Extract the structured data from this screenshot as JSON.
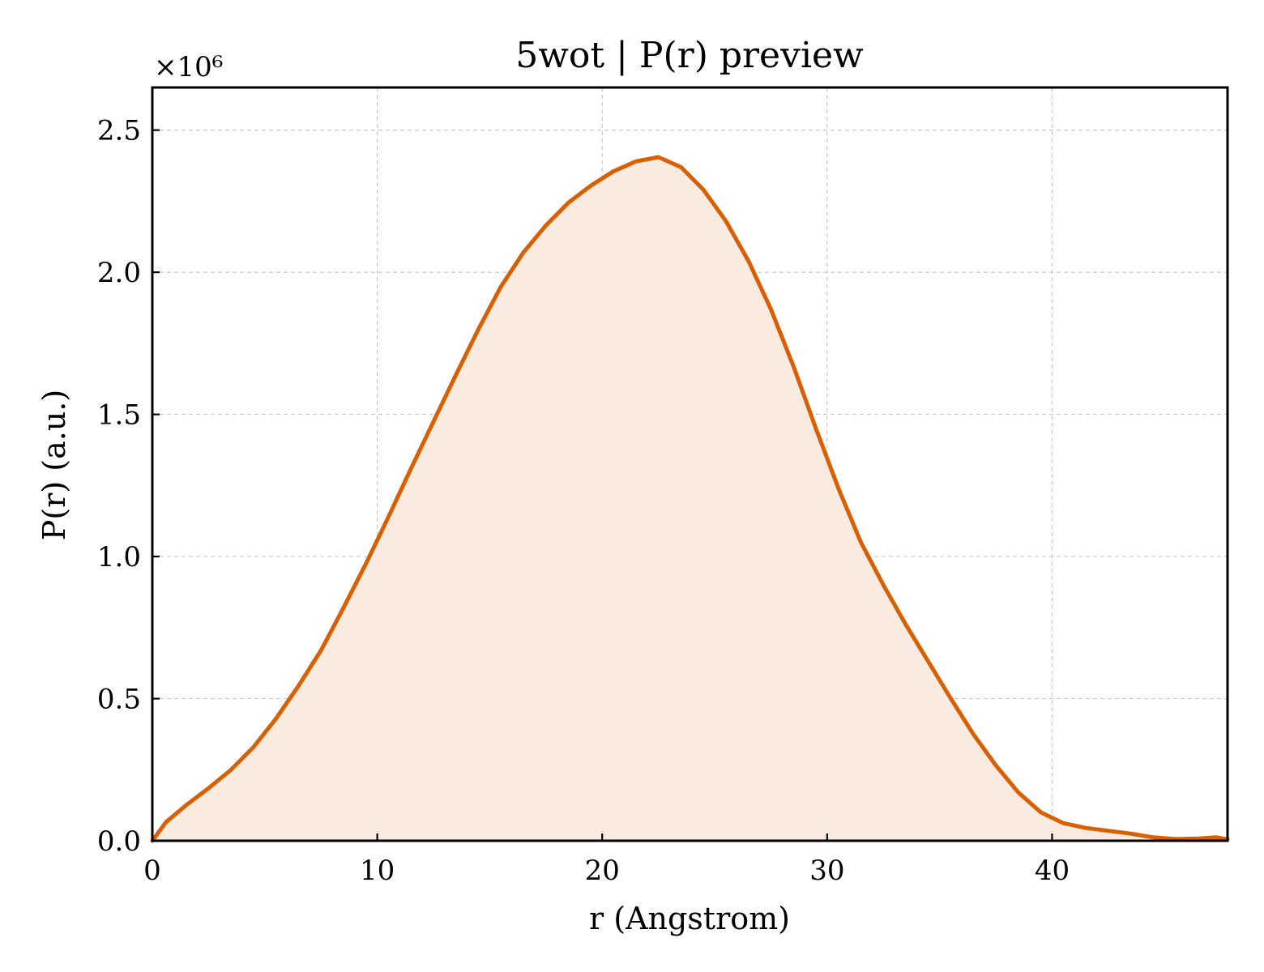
{
  "chart_data": {
    "type": "area",
    "title": "5wot | P(r) preview",
    "xlabel": "r (Angstrom)",
    "ylabel": "P(r) (a.u.)",
    "y_offset_text": "×10⁶",
    "xlim": [
      0,
      47.8
    ],
    "ylim": [
      0,
      2.65
    ],
    "y_scale_factor": 1000000,
    "x_ticks": [
      0,
      10,
      20,
      30,
      40
    ],
    "x_tick_labels": [
      "0",
      "10",
      "20",
      "30",
      "40"
    ],
    "y_ticks": [
      0,
      0.5,
      1.0,
      1.5,
      2.0,
      2.5
    ],
    "y_tick_labels": [
      "0.0",
      "0.5",
      "1.0",
      "1.5",
      "2.0",
      "2.5"
    ],
    "grid": true,
    "legend": "none",
    "colors": {
      "line": "#d95f02",
      "fill": "#f9ebe0"
    },
    "series": [
      {
        "x": [
          0,
          0.6,
          1.5,
          2.5,
          3.5,
          4.5,
          5.5,
          6.5,
          7.5,
          8.5,
          9.5,
          10.5,
          11.5,
          12.5,
          13.5,
          14.5,
          15.5,
          16.5,
          17.5,
          18.5,
          19.5,
          20.5,
          21.5,
          22.5,
          23.5,
          24.5,
          25.5,
          26.5,
          27.5,
          28.5,
          29.5,
          30.5,
          31.5,
          32.5,
          33.5,
          34.5,
          35.5,
          36.5,
          37.5,
          38.5,
          39.5,
          40.5,
          41.5,
          42.5,
          43.5,
          44.5,
          45.5,
          46.5,
          47.3,
          47.8
        ],
        "values": [
          0,
          0.065,
          0.125,
          0.185,
          0.25,
          0.33,
          0.43,
          0.545,
          0.67,
          0.82,
          0.975,
          1.14,
          1.31,
          1.475,
          1.64,
          1.8,
          1.95,
          2.07,
          2.165,
          2.245,
          2.305,
          2.355,
          2.39,
          2.405,
          2.37,
          2.29,
          2.18,
          2.04,
          1.87,
          1.67,
          1.45,
          1.24,
          1.05,
          0.9,
          0.76,
          0.63,
          0.5,
          0.375,
          0.265,
          0.17,
          0.1,
          0.062,
          0.045,
          0.035,
          0.025,
          0.012,
          0.006,
          0.008,
          0.012,
          0.005
        ]
      }
    ]
  }
}
